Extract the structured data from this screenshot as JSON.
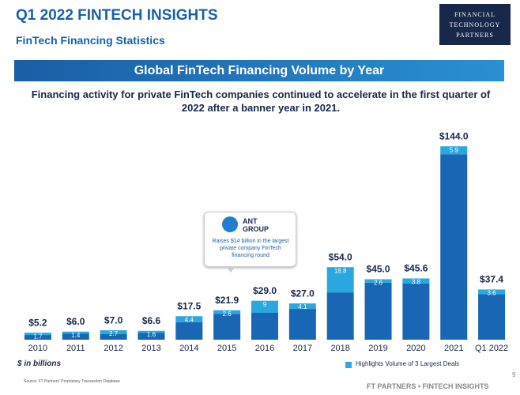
{
  "header": {
    "title": "Q1 2022 FINTECH INSIGHTS",
    "subtitle": "FinTech Financing Statistics",
    "logo": [
      "FINANCIAL",
      "TECHNOLOGY",
      "PARTNERS"
    ]
  },
  "chart_data": {
    "type": "bar",
    "stacked": true,
    "title": "Global FinTech Financing Volume by Year",
    "subtitle": "Financing activity for private FinTech companies continued to accelerate in the first quarter of 2022 after a banner year in 2021.",
    "categories": [
      "2010",
      "2011",
      "2012",
      "2013",
      "2014",
      "2015",
      "2016",
      "2017",
      "2018",
      "2019",
      "2020",
      "2021",
      "Q1 2022"
    ],
    "series": [
      {
        "color": "#1866b4",
        "values": [
          3.5,
          4.6,
          4.3,
          5.0,
          13.1,
          19.3,
          20.0,
          22.9,
          35.2,
          42.4,
          41.8,
          138.1,
          33.8
        ]
      },
      {
        "name": "Highlights Volume of 3 Largest Deals",
        "color": "#2aa7df",
        "values": [
          1.7,
          1.4,
          2.7,
          1.6,
          4.4,
          2.6,
          9.0,
          4.1,
          18.8,
          2.6,
          3.8,
          5.9,
          3.6
        ]
      }
    ],
    "totals": {
      "values": [
        5.2,
        6.0,
        7.0,
        6.6,
        17.5,
        21.9,
        29.0,
        27.0,
        54.0,
        45.0,
        45.6,
        144.0,
        37.4
      ],
      "value_labels": [
        "$5.2",
        "$6.0",
        "$7.0",
        "$6.6",
        "$17.5",
        "$21.9",
        "$29.0",
        "$27.0",
        "$54.0",
        "$45.0",
        "$45.6",
        "$144.0",
        "$37.4"
      ]
    },
    "ylim": [
      0,
      150
    ],
    "unit_label": "$ in billions",
    "annotation": {
      "logo": "ANT GROUP",
      "text": "Raises $14 billion in the largest private company FinTech financing round"
    }
  },
  "footer": {
    "source": "Source: FT Partners' Proprietary Transaction Database",
    "brand": "FT PARTNERS • FINTECH INSIGHTS",
    "page": "9"
  }
}
